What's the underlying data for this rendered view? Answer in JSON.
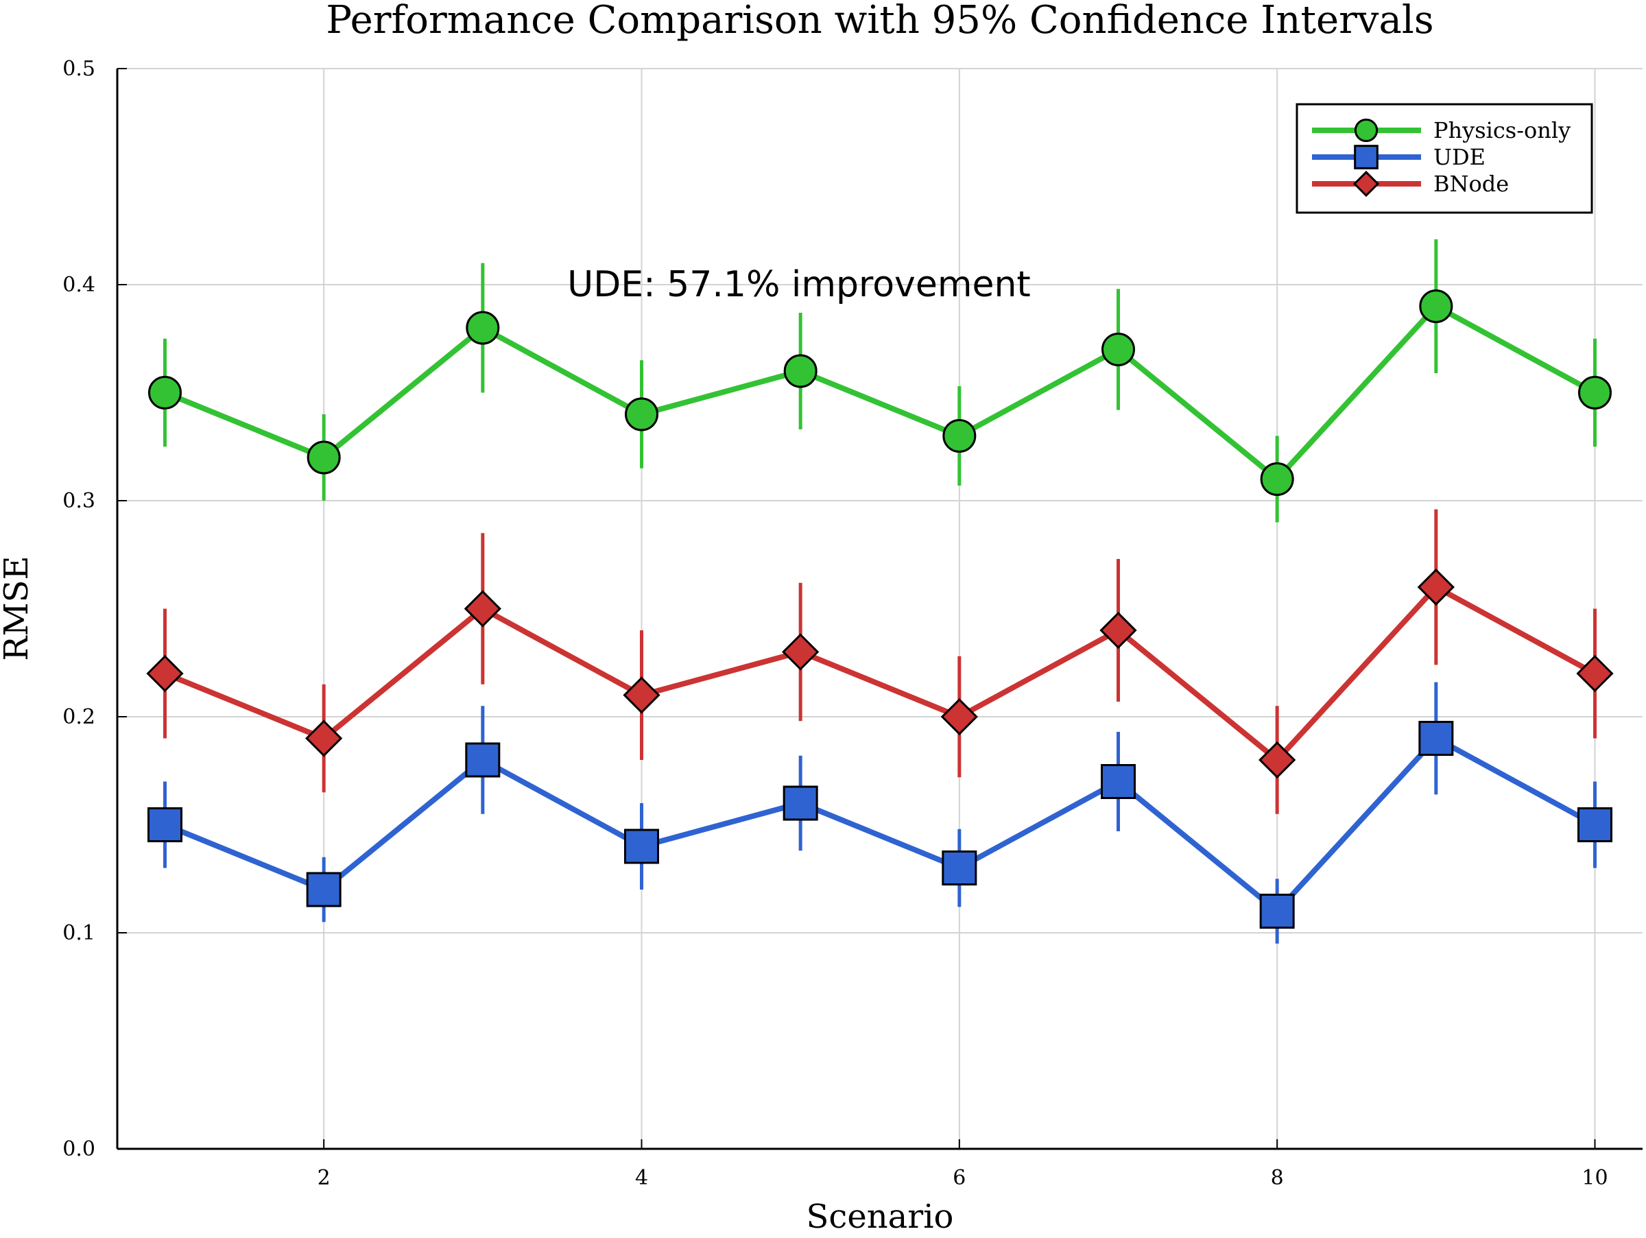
{
  "chart_data": {
    "type": "line",
    "title": "Performance Comparison with 95% Confidence Intervals",
    "xlabel": "Scenario",
    "ylabel": "RMSE",
    "xlim": [
      0.7,
      10.3
    ],
    "ylim": [
      0.0,
      0.5
    ],
    "x_ticks": [
      2,
      4,
      6,
      8,
      10
    ],
    "y_ticks": [
      "0.0",
      "0.1",
      "0.2",
      "0.3",
      "0.4",
      "0.5"
    ],
    "grid": true,
    "legend_position": "top-right",
    "x": [
      1,
      2,
      3,
      4,
      5,
      6,
      7,
      8,
      9,
      10
    ],
    "series": [
      {
        "name": "Physics-only",
        "color": "#33c233",
        "marker": "circle",
        "values": [
          0.35,
          0.32,
          0.38,
          0.34,
          0.36,
          0.33,
          0.37,
          0.31,
          0.39,
          0.35
        ],
        "ci_low": [
          0.325,
          0.3,
          0.35,
          0.315,
          0.333,
          0.307,
          0.342,
          0.29,
          0.359,
          0.325
        ],
        "ci_high": [
          0.375,
          0.34,
          0.41,
          0.365,
          0.387,
          0.353,
          0.398,
          0.33,
          0.421,
          0.375
        ]
      },
      {
        "name": "UDE",
        "color": "#2f63d1",
        "marker": "square",
        "values": [
          0.15,
          0.12,
          0.18,
          0.14,
          0.16,
          0.13,
          0.17,
          0.11,
          0.19,
          0.15
        ],
        "ci_low": [
          0.13,
          0.105,
          0.155,
          0.12,
          0.138,
          0.112,
          0.147,
          0.095,
          0.164,
          0.13
        ],
        "ci_high": [
          0.17,
          0.135,
          0.205,
          0.16,
          0.182,
          0.148,
          0.193,
          0.125,
          0.216,
          0.17
        ]
      },
      {
        "name": "BNode",
        "color": "#cc3333",
        "marker": "diamond",
        "values": [
          0.22,
          0.19,
          0.25,
          0.21,
          0.23,
          0.2,
          0.24,
          0.18,
          0.26,
          0.22
        ],
        "ci_low": [
          0.19,
          0.165,
          0.215,
          0.18,
          0.198,
          0.172,
          0.207,
          0.155,
          0.224,
          0.19
        ],
        "ci_high": [
          0.25,
          0.215,
          0.285,
          0.24,
          0.262,
          0.228,
          0.273,
          0.205,
          0.296,
          0.25
        ]
      }
    ],
    "annotations": [
      {
        "text": "UDE: 57.1% improvement",
        "x": 5.0,
        "y": 0.4
      }
    ]
  }
}
